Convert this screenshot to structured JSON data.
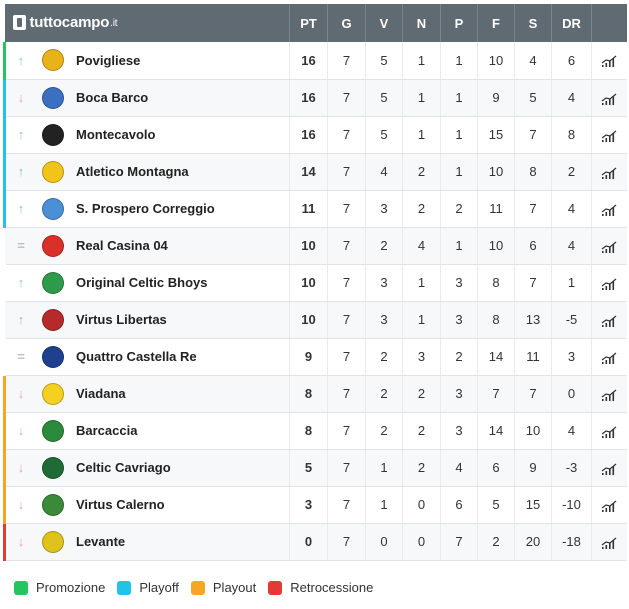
{
  "brand": {
    "name": "tuttocampo",
    "tld": ".it"
  },
  "columns": [
    "PT",
    "G",
    "V",
    "N",
    "P",
    "F",
    "S",
    "DR"
  ],
  "rows": [
    {
      "trend": "up",
      "trend_symbol": "↑",
      "zone": "promo",
      "crest_color": "#e8b21a",
      "team": "Povigliese",
      "pt": "16",
      "g": "7",
      "v": "5",
      "n": "1",
      "p": "1",
      "f": "10",
      "s": "4",
      "dr": "6"
    },
    {
      "trend": "down",
      "trend_symbol": "↓",
      "zone": "playoff",
      "crest_color": "#3a6fc2",
      "team": "Boca Barco",
      "pt": "16",
      "g": "7",
      "v": "5",
      "n": "1",
      "p": "1",
      "f": "9",
      "s": "5",
      "dr": "4"
    },
    {
      "trend": "up",
      "trend_symbol": "↑",
      "zone": "playoff",
      "crest_color": "#222222",
      "team": "Montecavolo",
      "pt": "16",
      "g": "7",
      "v": "5",
      "n": "1",
      "p": "1",
      "f": "15",
      "s": "7",
      "dr": "8"
    },
    {
      "trend": "up",
      "trend_symbol": "↑",
      "zone": "playoff",
      "crest_color": "#f2c318",
      "team": "Atletico Montagna",
      "pt": "14",
      "g": "7",
      "v": "4",
      "n": "2",
      "p": "1",
      "f": "10",
      "s": "8",
      "dr": "2"
    },
    {
      "trend": "up",
      "trend_symbol": "↑",
      "zone": "playoff",
      "crest_color": "#4b8fd6",
      "team": "S. Prospero Correggio",
      "pt": "11",
      "g": "7",
      "v": "3",
      "n": "2",
      "p": "2",
      "f": "11",
      "s": "7",
      "dr": "4"
    },
    {
      "trend": "same",
      "trend_symbol": "=",
      "zone": "none",
      "crest_color": "#d9302a",
      "team": "Real Casina 04",
      "pt": "10",
      "g": "7",
      "v": "2",
      "n": "4",
      "p": "1",
      "f": "10",
      "s": "6",
      "dr": "4"
    },
    {
      "trend": "up",
      "trend_symbol": "↑",
      "zone": "none",
      "crest_color": "#2e9b4a",
      "team": "Original Celtic Bhoys",
      "pt": "10",
      "g": "7",
      "v": "3",
      "n": "1",
      "p": "3",
      "f": "8",
      "s": "7",
      "dr": "1"
    },
    {
      "trend": "up",
      "trend_symbol": "↑",
      "zone": "none",
      "crest_color": "#b52a2a",
      "team": "Virtus Libertas",
      "pt": "10",
      "g": "7",
      "v": "3",
      "n": "1",
      "p": "3",
      "f": "8",
      "s": "13",
      "dr": "-5"
    },
    {
      "trend": "same",
      "trend_symbol": "=",
      "zone": "none",
      "crest_color": "#1f3f8f",
      "team": "Quattro Castella Re",
      "pt": "9",
      "g": "7",
      "v": "2",
      "n": "3",
      "p": "2",
      "f": "14",
      "s": "11",
      "dr": "3"
    },
    {
      "trend": "down",
      "trend_symbol": "↓",
      "zone": "playout",
      "crest_color": "#f4d020",
      "team": "Viadana",
      "pt": "8",
      "g": "7",
      "v": "2",
      "n": "2",
      "p": "3",
      "f": "7",
      "s": "7",
      "dr": "0"
    },
    {
      "trend": "down",
      "trend_symbol": "↓",
      "zone": "playout",
      "crest_color": "#2c8a3b",
      "team": "Barcaccia",
      "pt": "8",
      "g": "7",
      "v": "2",
      "n": "2",
      "p": "3",
      "f": "14",
      "s": "10",
      "dr": "4"
    },
    {
      "trend": "down",
      "trend_symbol": "↓",
      "zone": "playout",
      "crest_color": "#1e6b35",
      "team": "Celtic Cavriago",
      "pt": "5",
      "g": "7",
      "v": "1",
      "n": "2",
      "p": "4",
      "f": "6",
      "s": "9",
      "dr": "-3"
    },
    {
      "trend": "down",
      "trend_symbol": "↓",
      "zone": "playout",
      "crest_color": "#3a8a3a",
      "team": "Virtus Calerno",
      "pt": "3",
      "g": "7",
      "v": "1",
      "n": "0",
      "p": "6",
      "f": "5",
      "s": "15",
      "dr": "-10"
    },
    {
      "trend": "down",
      "trend_symbol": "↓",
      "zone": "retro",
      "crest_color": "#e0c21c",
      "team": "Levante",
      "pt": "0",
      "g": "7",
      "v": "0",
      "n": "0",
      "p": "7",
      "f": "2",
      "s": "20",
      "dr": "-18"
    }
  ],
  "legend": [
    {
      "label": "Promozione",
      "color": "#22c55e"
    },
    {
      "label": "Playoff",
      "color": "#22c3e6"
    },
    {
      "label": "Playout",
      "color": "#f5a623"
    },
    {
      "label": "Retrocessione",
      "color": "#e53935"
    }
  ],
  "icons": {
    "trend_up": "arrow-up-icon",
    "trend_down": "arrow-down-icon",
    "trend_same": "equals-icon",
    "stats": "stats-chart-icon",
    "brand": "tuttocampo-logo-icon"
  }
}
